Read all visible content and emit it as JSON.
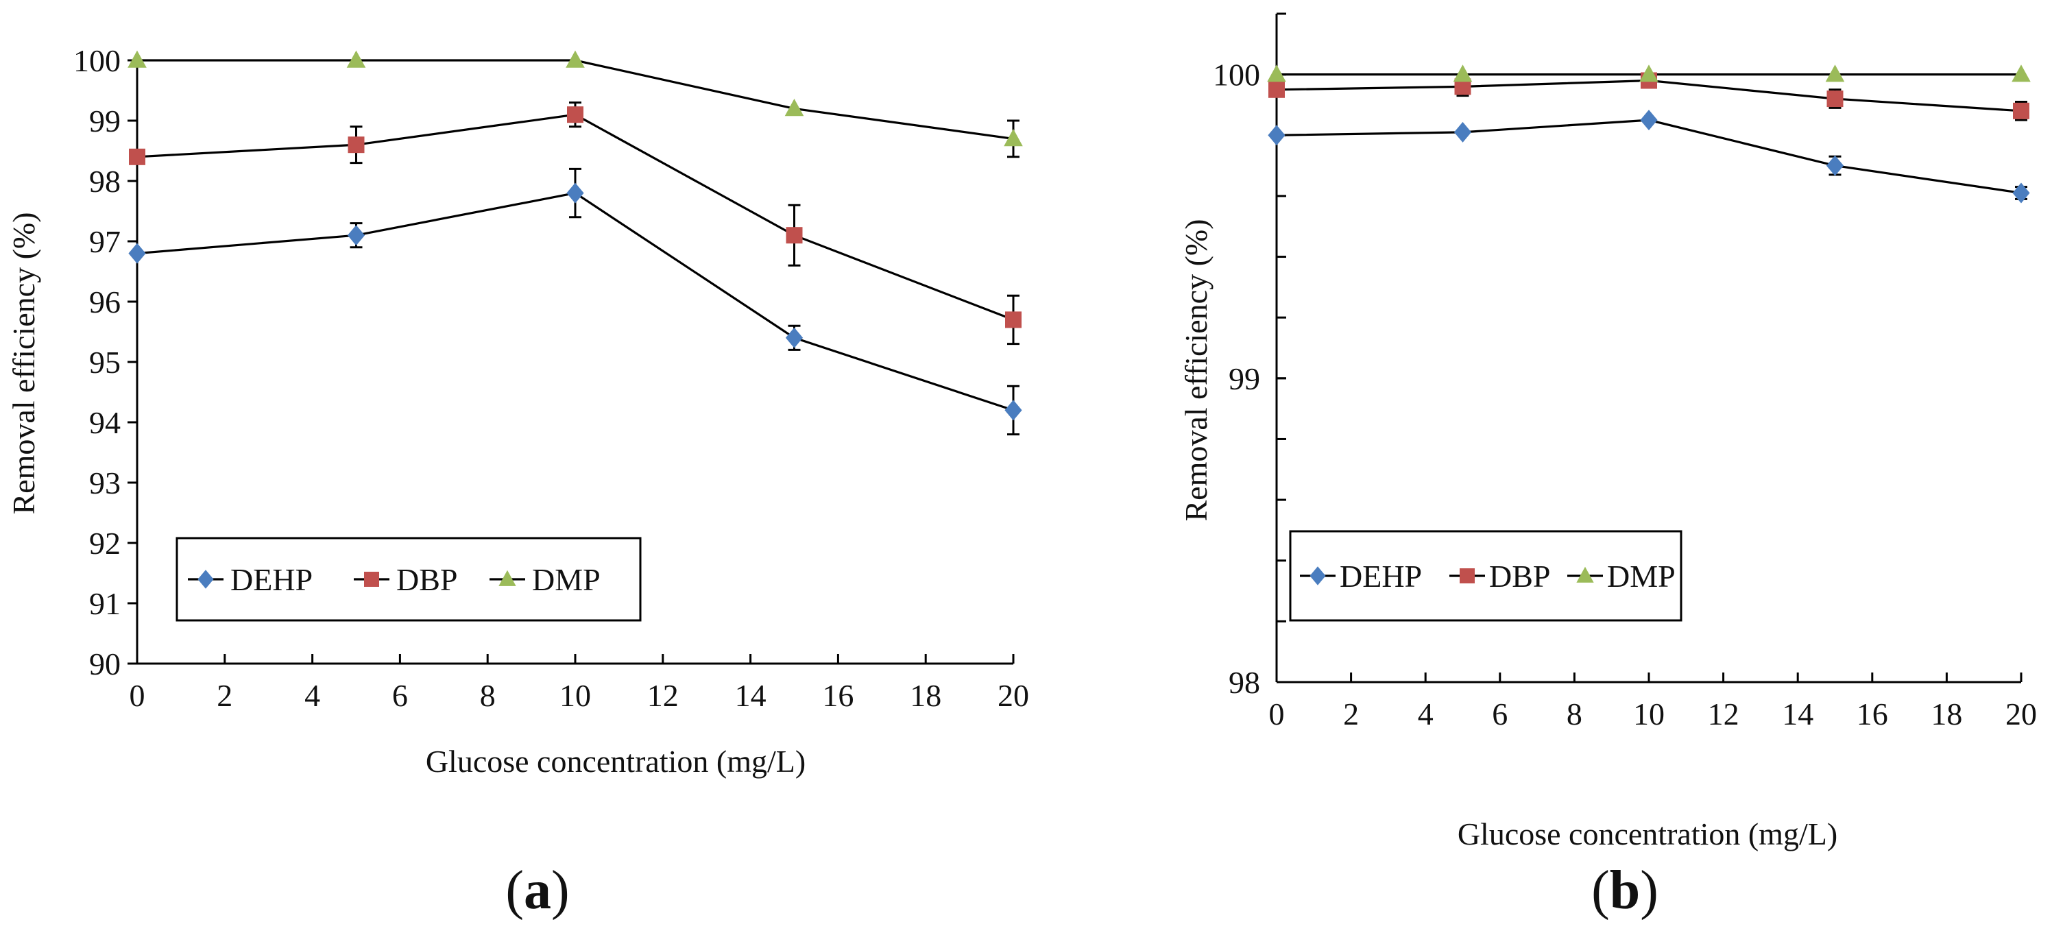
{
  "chart_data": [
    {
      "type": "line",
      "panel_label": "(a)",
      "panel_text": "a",
      "xlabel": "Glucose concentration (mg/L)",
      "ylabel": "Removal efficiency (%)",
      "xlim": [
        0,
        20
      ],
      "ylim": [
        90,
        100
      ],
      "x_ticks": [
        0,
        2,
        4,
        6,
        8,
        10,
        12,
        14,
        16,
        18,
        20
      ],
      "y_ticks": [
        90,
        91,
        92,
        93,
        94,
        95,
        96,
        97,
        98,
        99,
        100
      ],
      "x": [
        0,
        5,
        10,
        15,
        20
      ],
      "grid": false,
      "legend_position": "bottom-left",
      "series": [
        {
          "name": "DEHP",
          "marker": "diamond",
          "color": "#4a7dbf",
          "values": [
            96.8,
            97.1,
            97.8,
            95.4,
            94.2
          ],
          "errors": [
            0,
            0.2,
            0.4,
            0.2,
            0.4
          ]
        },
        {
          "name": "DBP",
          "marker": "square",
          "color": "#c0504d",
          "values": [
            98.4,
            98.6,
            99.1,
            97.1,
            95.7
          ],
          "errors": [
            0,
            0.3,
            0.2,
            0.5,
            0.4
          ]
        },
        {
          "name": "DMP",
          "marker": "triangle",
          "color": "#9bbb59",
          "values": [
            100,
            100,
            100,
            99.2,
            98.7
          ],
          "errors": [
            0,
            0,
            0,
            0,
            0.3
          ]
        }
      ]
    },
    {
      "type": "line",
      "panel_label": "(b)",
      "panel_text": "b",
      "xlabel": "Glucose concentration (mg/L)",
      "ylabel": "Removal efficiency (%)",
      "xlim": [
        0,
        20
      ],
      "ylim": [
        98,
        100.2
      ],
      "x_ticks": [
        0,
        2,
        4,
        6,
        8,
        10,
        12,
        14,
        16,
        18,
        20
      ],
      "y_ticks": [
        98,
        99,
        100
      ],
      "x": [
        0,
        5,
        10,
        15,
        20
      ],
      "grid": false,
      "legend_position": "bottom-left",
      "series": [
        {
          "name": "DEHP",
          "marker": "diamond",
          "color": "#4a7dbf",
          "values": [
            99.8,
            99.81,
            99.85,
            99.7,
            99.61
          ],
          "errors": [
            0,
            0,
            0,
            0.03,
            0.02
          ]
        },
        {
          "name": "DBP",
          "marker": "square",
          "color": "#c0504d",
          "values": [
            99.95,
            99.96,
            99.98,
            99.92,
            99.88
          ],
          "errors": [
            0,
            0.03,
            0,
            0.03,
            0.03
          ]
        },
        {
          "name": "DMP",
          "marker": "triangle",
          "color": "#9bbb59",
          "values": [
            100,
            100,
            100,
            100,
            100
          ],
          "errors": [
            0,
            0,
            0,
            0,
            0
          ]
        }
      ]
    }
  ]
}
